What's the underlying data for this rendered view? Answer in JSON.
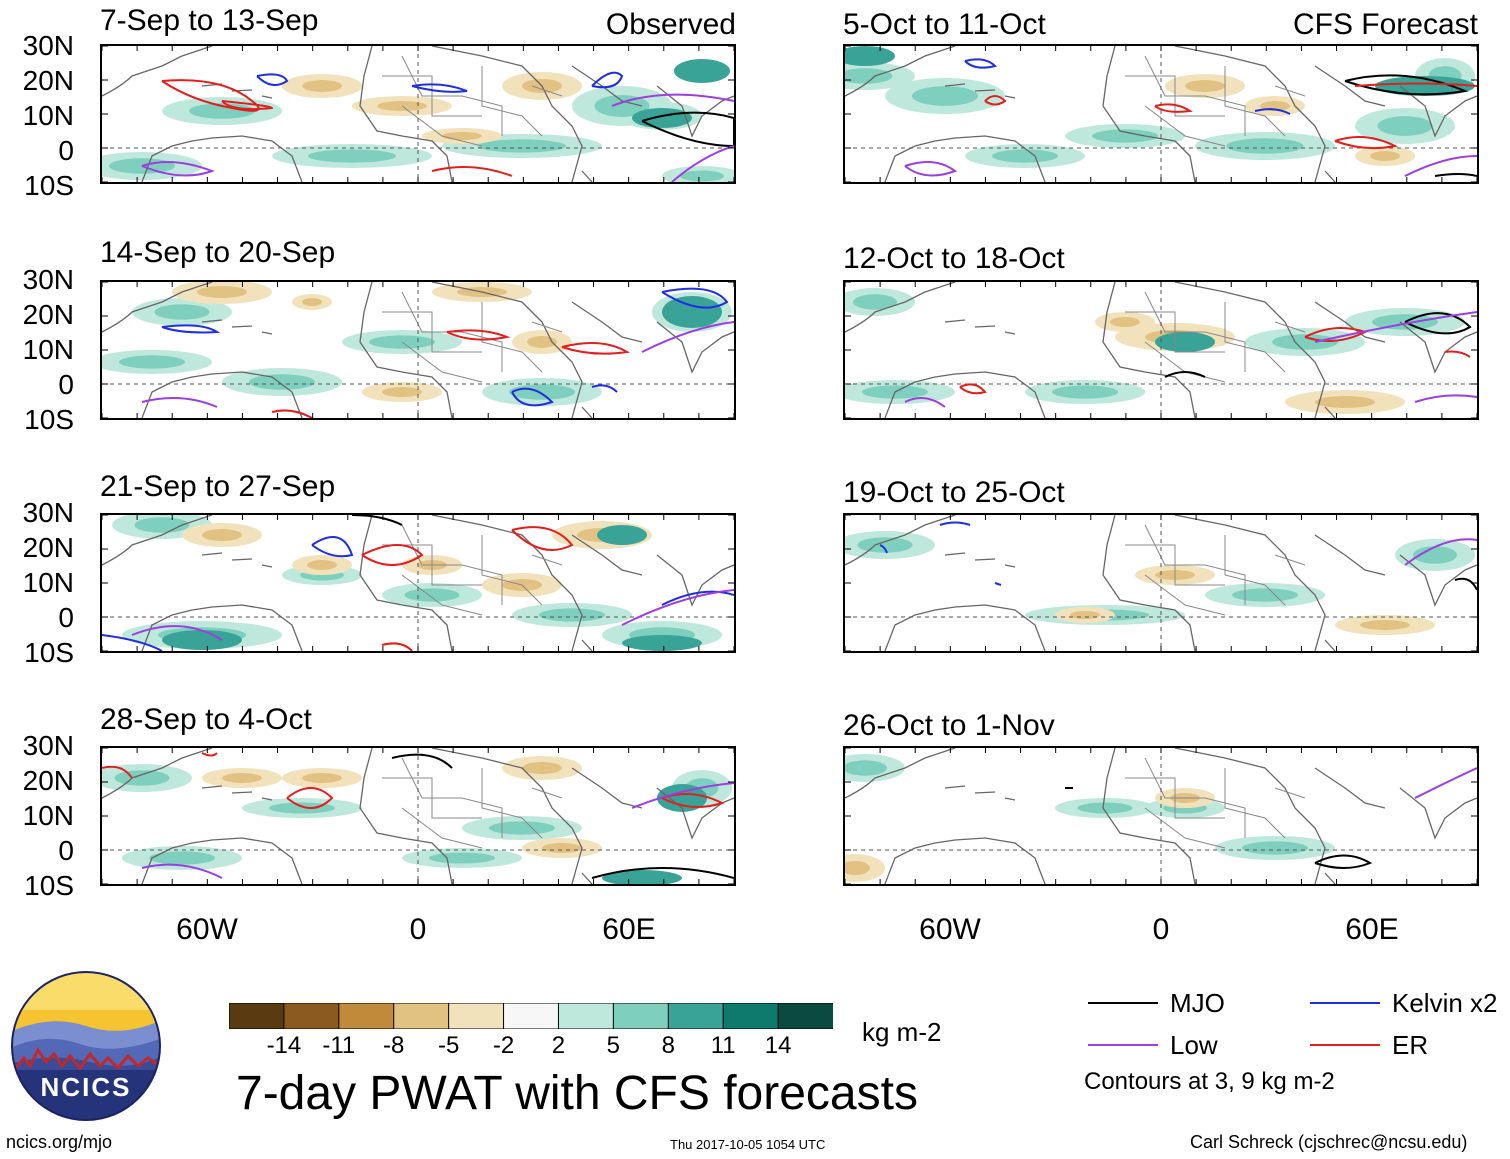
{
  "colors": {
    "mjo": "#000000",
    "kelvin": "#1f2fe0",
    "low": "#9b3fe0",
    "er": "#e01f1f",
    "wet1": "#bfe8dc",
    "wet2": "#7fcfbf",
    "wet3": "#3aa398",
    "dry1": "#f2e2bc",
    "dry2": "#e2c282"
  },
  "lat_labels": [
    "30N",
    "20N",
    "10N",
    "0",
    "10S"
  ],
  "lon_labels": [
    "60W",
    "0",
    "60E"
  ],
  "observed": {
    "corner_label": "Observed",
    "panels": [
      {
        "title": "7-Sep to 13-Sep"
      },
      {
        "title": "14-Sep to 20-Sep"
      },
      {
        "title": "21-Sep to 27-Sep"
      },
      {
        "title": "28-Sep to 4-Oct"
      }
    ]
  },
  "forecast": {
    "corner_label": "CFS Forecast",
    "panels": [
      {
        "title": "5-Oct to 11-Oct"
      },
      {
        "title": "12-Oct to 18-Oct"
      },
      {
        "title": "19-Oct to 25-Oct"
      },
      {
        "title": "26-Oct to 1-Nov"
      }
    ]
  },
  "colorbar": {
    "ticks": [
      "-14",
      "-11",
      "-8",
      "-5",
      "-2",
      "2",
      "5",
      "8",
      "11",
      "14"
    ],
    "colors": [
      "#5a3a10",
      "#8a5a20",
      "#c08a3a",
      "#e2c282",
      "#f2e2bc",
      "#f7f7f7",
      "#bfe8dc",
      "#7fcfbf",
      "#3aa398",
      "#0e7a6e",
      "#0b4a40"
    ],
    "units": "kg m-2"
  },
  "legend": {
    "mjo": "MJO",
    "kelvin": "Kelvin x2",
    "low": "Low",
    "er": "ER",
    "note": "Contours at 3, 9 kg m-2"
  },
  "logo_text": "NCICS",
  "main_title": "7-day PWAT with CFS forecasts",
  "footer": {
    "left": "ncics.org/mjo",
    "center": "Thu 2017-10-05 1054 UTC",
    "right": "Carl Schreck (cjschrec@ncsu.edu)"
  }
}
